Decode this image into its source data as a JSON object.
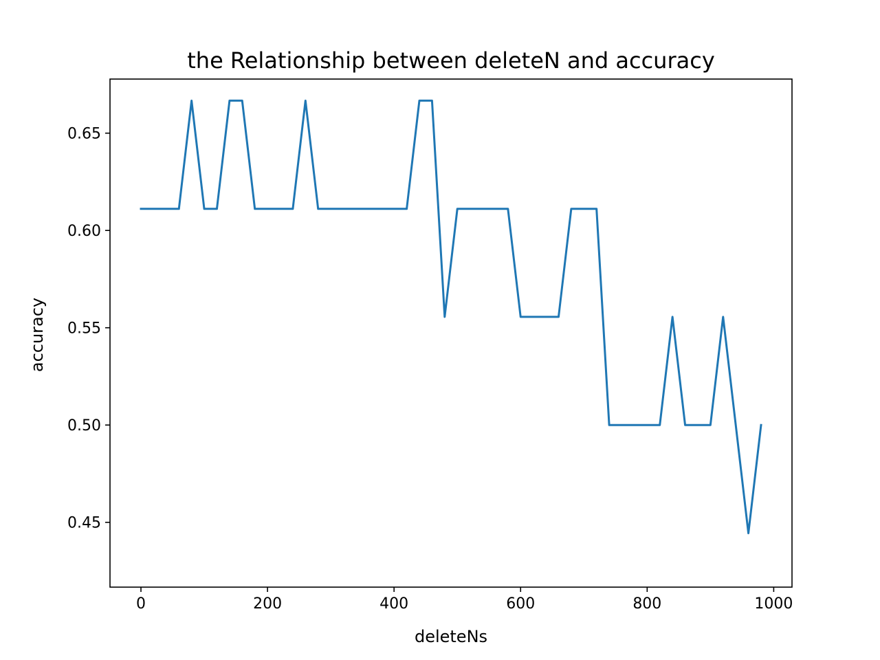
{
  "chart_data": {
    "type": "line",
    "title": "the Relationship between deleteN and accuracy",
    "xlabel": "deleteNs",
    "ylabel": "accuracy",
    "xlim": [
      -48.9,
      1028.9
    ],
    "ylim": [
      0.4167,
      0.6778
    ],
    "x_ticks": [
      0,
      200,
      400,
      600,
      800,
      1000
    ],
    "x_tick_labels": [
      "0",
      "200",
      "400",
      "600",
      "800",
      "1000"
    ],
    "y_ticks": [
      0.45,
      0.5,
      0.55,
      0.6,
      0.65
    ],
    "y_tick_labels": [
      "0.45",
      "0.50",
      "0.55",
      "0.60",
      "0.65"
    ],
    "grid": false,
    "series": [
      {
        "color": "#1f77b4",
        "x": [
          0,
          20,
          40,
          60,
          80,
          100,
          120,
          140,
          160,
          180,
          200,
          220,
          240,
          260,
          280,
          300,
          320,
          340,
          360,
          380,
          400,
          420,
          440,
          460,
          480,
          500,
          520,
          540,
          560,
          580,
          600,
          620,
          640,
          660,
          680,
          700,
          720,
          740,
          760,
          780,
          800,
          820,
          840,
          860,
          880,
          900,
          920,
          940,
          960,
          980
        ],
        "values": [
          0.6111,
          0.6111,
          0.6111,
          0.6111,
          0.6667,
          0.6111,
          0.6111,
          0.6667,
          0.6667,
          0.6111,
          0.6111,
          0.6111,
          0.6111,
          0.6667,
          0.6111,
          0.6111,
          0.6111,
          0.6111,
          0.6111,
          0.6111,
          0.6111,
          0.6111,
          0.6667,
          0.6667,
          0.5556,
          0.6111,
          0.6111,
          0.6111,
          0.6111,
          0.6111,
          0.5556,
          0.5556,
          0.5556,
          0.5556,
          0.6111,
          0.6111,
          0.6111,
          0.5,
          0.5,
          0.5,
          0.5,
          0.5,
          0.5556,
          0.5,
          0.5,
          0.5,
          0.5556,
          0.5,
          0.4444,
          0.5
        ]
      }
    ]
  }
}
